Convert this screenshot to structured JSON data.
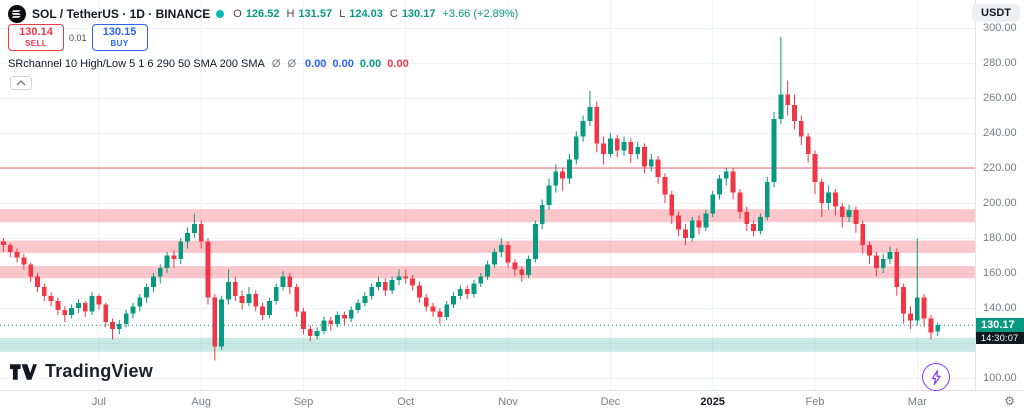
{
  "header": {
    "symbol": "SOL / TetherUS · 1D · BINANCE",
    "ohlc": {
      "items": [
        {
          "label": "O",
          "value": "126.52"
        },
        {
          "label": "H",
          "value": "131.57"
        },
        {
          "label": "L",
          "value": "124.03"
        },
        {
          "label": "C",
          "value": "130.17"
        }
      ],
      "change": "+3.66 (+2.89%)"
    },
    "currency_button": "USDT"
  },
  "trade_panel": {
    "sell_price": "130.14",
    "sell_label": "SELL",
    "spread": "0.01",
    "buy_price": "130.15",
    "buy_label": "BUY"
  },
  "indicator_row": {
    "name": "SRchannel 10 High/Low 5 1 6 290 50 SMA 200 SMA",
    "icons": "Ø Ø",
    "values": [
      {
        "text": "0.00",
        "color": "#2962ff"
      },
      {
        "text": "0.00",
        "color": "#2962ff"
      },
      {
        "text": "0.00",
        "color": "#089981"
      },
      {
        "text": "0.00",
        "color": "#f23645"
      }
    ]
  },
  "watermark": {
    "text": "TradingView"
  },
  "price_axis": {
    "labels": [
      300,
      280,
      260,
      240,
      220,
      200,
      180,
      160,
      140,
      100
    ],
    "current_price": "130.17",
    "countdown": "14:30:07"
  },
  "time_axis": {
    "labels": [
      {
        "text": "Jul",
        "candle": 14
      },
      {
        "text": "Aug",
        "candle": 29
      },
      {
        "text": "Sep",
        "candle": 44
      },
      {
        "text": "Oct",
        "candle": 59
      },
      {
        "text": "Nov",
        "candle": 74
      },
      {
        "text": "Dec",
        "candle": 89
      },
      {
        "text": "2025",
        "candle": 104,
        "strong": true
      },
      {
        "text": "Feb",
        "candle": 119
      },
      {
        "text": "Mar",
        "candle": 134
      }
    ]
  },
  "icons": {
    "gear": "⚙"
  },
  "colors": {
    "up": "#089981",
    "down": "#f23645",
    "blue": "#2962ff",
    "grid": "#f0f3fa",
    "axis_text": "#787b86",
    "text": "#131722",
    "live_dot": "#0abab5",
    "label_bg": "#089981",
    "countdown_bg": "#131722",
    "purple": "#8440f5"
  },
  "chart_data": {
    "type": "candlestick",
    "title": "SOL / TetherUS · 1D · BINANCE",
    "ylim": [
      100,
      300
    ],
    "y_ticks": [
      300,
      280,
      260,
      240,
      220,
      200,
      180,
      160,
      140,
      120,
      100
    ],
    "last_price": 130.17,
    "zones": [
      {
        "from": 189,
        "to": 196.5,
        "color": "rgba(242,54,69,0.28)",
        "name": "resistance-zone-1"
      },
      {
        "from": 171.5,
        "to": 178.5,
        "color": "rgba(242,54,69,0.28)",
        "name": "resistance-zone-2"
      },
      {
        "from": 157,
        "to": 164,
        "color": "rgba(242,54,69,0.28)",
        "name": "resistance-zone-3"
      },
      {
        "from": 115,
        "to": 123,
        "color": "rgba(8,153,129,0.22)",
        "name": "support-zone"
      }
    ],
    "levels": [
      {
        "price": 220,
        "color": "rgba(242,54,69,0.5)"
      }
    ],
    "candles": [
      [
        178,
        180,
        172,
        176
      ],
      [
        176,
        177,
        169,
        172
      ],
      [
        172,
        174,
        166,
        169
      ],
      [
        169,
        171,
        162,
        165
      ],
      [
        165,
        166,
        155,
        158
      ],
      [
        158,
        160,
        149,
        152
      ],
      [
        152,
        154,
        144,
        147
      ],
      [
        147,
        149,
        141,
        144
      ],
      [
        144,
        146,
        136,
        139
      ],
      [
        139,
        141,
        132,
        136
      ],
      [
        136,
        142,
        134,
        140
      ],
      [
        140,
        145,
        137,
        143
      ],
      [
        143,
        144,
        135,
        138
      ],
      [
        138,
        149,
        136,
        147
      ],
      [
        147,
        148,
        139,
        142
      ],
      [
        142,
        143,
        129,
        132
      ],
      [
        132,
        134,
        122,
        128
      ],
      [
        128,
        133,
        125,
        131
      ],
      [
        131,
        139,
        129,
        137
      ],
      [
        137,
        143,
        134,
        141
      ],
      [
        141,
        148,
        138,
        146
      ],
      [
        146,
        154,
        143,
        152
      ],
      [
        152,
        160,
        149,
        158
      ],
      [
        158,
        165,
        154,
        163
      ],
      [
        163,
        172,
        160,
        170
      ],
      [
        170,
        173,
        163,
        168
      ],
      [
        168,
        180,
        165,
        178
      ],
      [
        178,
        186,
        174,
        183
      ],
      [
        183,
        194,
        180,
        188
      ],
      [
        188,
        190,
        174,
        178
      ],
      [
        178,
        180,
        142,
        146
      ],
      [
        146,
        148,
        110,
        118
      ],
      [
        118,
        147,
        116,
        145
      ],
      [
        145,
        162,
        142,
        155
      ],
      [
        155,
        158,
        144,
        147
      ],
      [
        147,
        150,
        139,
        143
      ],
      [
        143,
        152,
        141,
        148
      ],
      [
        148,
        150,
        138,
        141
      ],
      [
        141,
        143,
        133,
        136
      ],
      [
        136,
        146,
        134,
        144
      ],
      [
        144,
        154,
        142,
        152
      ],
      [
        152,
        161,
        150,
        158
      ],
      [
        158,
        160,
        148,
        152
      ],
      [
        152,
        154,
        135,
        138
      ],
      [
        138,
        140,
        125,
        128
      ],
      [
        128,
        130,
        121,
        124
      ],
      [
        124,
        129,
        122,
        127
      ],
      [
        127,
        135,
        125,
        133
      ],
      [
        133,
        135,
        127,
        131
      ],
      [
        131,
        138,
        129,
        136
      ],
      [
        136,
        138,
        130,
        134
      ],
      [
        134,
        141,
        132,
        139
      ],
      [
        139,
        145,
        137,
        143
      ],
      [
        143,
        149,
        141,
        147
      ],
      [
        147,
        154,
        145,
        152
      ],
      [
        152,
        158,
        150,
        155
      ],
      [
        155,
        157,
        147,
        150
      ],
      [
        150,
        158,
        148,
        156
      ],
      [
        156,
        162,
        153,
        158
      ],
      [
        158,
        162,
        154,
        157
      ],
      [
        157,
        159,
        150,
        153
      ],
      [
        153,
        155,
        143,
        146
      ],
      [
        146,
        148,
        138,
        141
      ],
      [
        141,
        143,
        135,
        138
      ],
      [
        138,
        140,
        131,
        135
      ],
      [
        135,
        144,
        133,
        142
      ],
      [
        142,
        149,
        140,
        147
      ],
      [
        147,
        153,
        145,
        151
      ],
      [
        151,
        153,
        145,
        148
      ],
      [
        148,
        156,
        146,
        154
      ],
      [
        154,
        160,
        152,
        158
      ],
      [
        158,
        167,
        156,
        165
      ],
      [
        165,
        174,
        163,
        172
      ],
      [
        172,
        180,
        169,
        176
      ],
      [
        176,
        178,
        163,
        166
      ],
      [
        166,
        168,
        158,
        162
      ],
      [
        162,
        164,
        155,
        159
      ],
      [
        159,
        170,
        157,
        168
      ],
      [
        168,
        190,
        166,
        188
      ],
      [
        188,
        202,
        185,
        199
      ],
      [
        199,
        214,
        196,
        210
      ],
      [
        210,
        222,
        206,
        218
      ],
      [
        218,
        220,
        207,
        214
      ],
      [
        214,
        228,
        211,
        225
      ],
      [
        225,
        241,
        222,
        238
      ],
      [
        238,
        250,
        235,
        247
      ],
      [
        247,
        264,
        244,
        255
      ],
      [
        255,
        258,
        229,
        234
      ],
      [
        234,
        238,
        222,
        228
      ],
      [
        228,
        240,
        226,
        237
      ],
      [
        237,
        239,
        226,
        230
      ],
      [
        230,
        238,
        227,
        235
      ],
      [
        235,
        237,
        223,
        228
      ],
      [
        228,
        235,
        225,
        232
      ],
      [
        232,
        234,
        217,
        221
      ],
      [
        221,
        228,
        218,
        225
      ],
      [
        225,
        227,
        211,
        215
      ],
      [
        215,
        217,
        200,
        205
      ],
      [
        205,
        207,
        188,
        193
      ],
      [
        193,
        195,
        181,
        185
      ],
      [
        185,
        188,
        176,
        180
      ],
      [
        180,
        192,
        178,
        190
      ],
      [
        190,
        193,
        182,
        186
      ],
      [
        186,
        196,
        184,
        194
      ],
      [
        194,
        207,
        192,
        205
      ],
      [
        205,
        216,
        202,
        214
      ],
      [
        214,
        220,
        210,
        218
      ],
      [
        218,
        220,
        202,
        206
      ],
      [
        206,
        208,
        191,
        195
      ],
      [
        195,
        198,
        184,
        188
      ],
      [
        188,
        190,
        181,
        184
      ],
      [
        184,
        194,
        182,
        192
      ],
      [
        192,
        215,
        190,
        212
      ],
      [
        212,
        252,
        209,
        248
      ],
      [
        248,
        295,
        245,
        262
      ],
      [
        262,
        270,
        250,
        256
      ],
      [
        256,
        262,
        242,
        247
      ],
      [
        247,
        250,
        233,
        238
      ],
      [
        238,
        240,
        223,
        228
      ],
      [
        228,
        230,
        205,
        212
      ],
      [
        212,
        214,
        192,
        200
      ],
      [
        200,
        210,
        196,
        206
      ],
      [
        206,
        208,
        193,
        198
      ],
      [
        198,
        200,
        186,
        192
      ],
      [
        192,
        199,
        189,
        196
      ],
      [
        196,
        198,
        183,
        188
      ],
      [
        188,
        190,
        171,
        176
      ],
      [
        176,
        178,
        165,
        170
      ],
      [
        170,
        172,
        158,
        163
      ],
      [
        163,
        171,
        160,
        168
      ],
      [
        168,
        175,
        165,
        172
      ],
      [
        172,
        174,
        147,
        152
      ],
      [
        152,
        154,
        131,
        137
      ],
      [
        137,
        141,
        128,
        133
      ],
      [
        133,
        180,
        130,
        146
      ],
      [
        146,
        148,
        129,
        134
      ],
      [
        134,
        136,
        122,
        126
      ],
      [
        126.52,
        131.57,
        124.03,
        130.17
      ]
    ]
  }
}
